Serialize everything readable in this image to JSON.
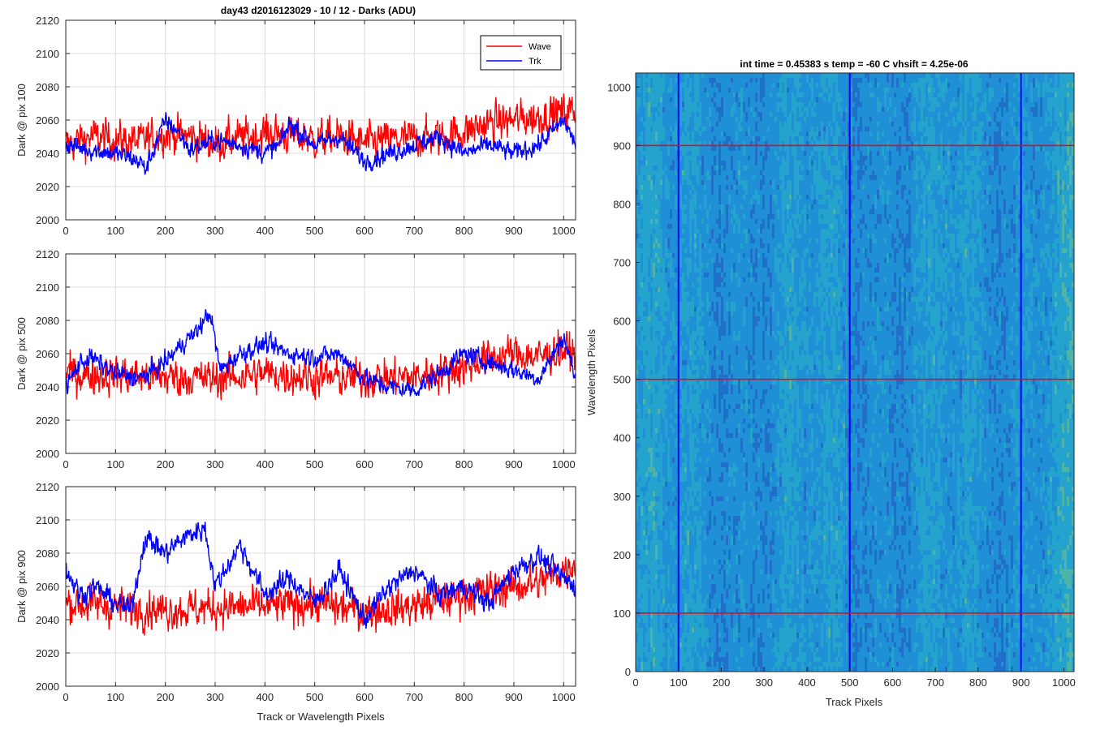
{
  "figure": {
    "title": "day43 d2016123029 - 10 / 12 - Darks (ADU)",
    "left_xlabel": "Track or Wavelength Pixels",
    "colors": {
      "wave": "#ff0000",
      "trk": "#0000ff",
      "grid": "#dcdcdc",
      "axis": "#262626"
    }
  },
  "chart_data": [
    {
      "type": "line",
      "title": "day43 d2016123029 - 10 / 12 - Darks (ADU)",
      "xlabel": "",
      "ylabel": "Dark @ pix 100",
      "xlim": [
        0,
        1024
      ],
      "ylim": [
        2000,
        2120
      ],
      "xticks": [
        0,
        100,
        200,
        300,
        400,
        500,
        600,
        700,
        800,
        900,
        1000
      ],
      "yticks": [
        2000,
        2020,
        2040,
        2060,
        2080,
        2100,
        2120
      ],
      "grid": true,
      "legend": "top-right",
      "series": [
        {
          "name": "Wave",
          "color": "#ff0000",
          "x": [
            0,
            50,
            100,
            150,
            200,
            250,
            300,
            350,
            400,
            450,
            500,
            550,
            600,
            650,
            700,
            750,
            800,
            850,
            900,
            950,
            1000,
            1024
          ],
          "y": [
            2045,
            2050,
            2048,
            2047,
            2052,
            2050,
            2046,
            2049,
            2052,
            2051,
            2048,
            2050,
            2046,
            2048,
            2049,
            2050,
            2053,
            2058,
            2060,
            2062,
            2065,
            2066
          ],
          "noise": 14
        },
        {
          "name": "Trk",
          "color": "#0000ff",
          "x": [
            0,
            50,
            100,
            150,
            160,
            200,
            220,
            250,
            300,
            350,
            400,
            430,
            450,
            500,
            550,
            600,
            650,
            700,
            750,
            800,
            850,
            900,
            950,
            1000,
            1024
          ],
          "y": [
            2045,
            2042,
            2040,
            2035,
            2030,
            2060,
            2055,
            2042,
            2048,
            2045,
            2040,
            2045,
            2058,
            2045,
            2050,
            2035,
            2040,
            2045,
            2050,
            2040,
            2045,
            2040,
            2045,
            2060,
            2045
          ],
          "noise": 7
        }
      ]
    },
    {
      "type": "line",
      "title": "",
      "xlabel": "",
      "ylabel": "Dark @ pix 500",
      "xlim": [
        0,
        1024
      ],
      "ylim": [
        2000,
        2120
      ],
      "xticks": [
        0,
        100,
        200,
        300,
        400,
        500,
        600,
        700,
        800,
        900,
        1000
      ],
      "yticks": [
        2000,
        2020,
        2040,
        2060,
        2080,
        2100,
        2120
      ],
      "grid": true,
      "series": [
        {
          "name": "Wave",
          "color": "#ff0000",
          "x": [
            0,
            100,
            200,
            300,
            400,
            500,
            600,
            700,
            800,
            850,
            900,
            950,
            1000,
            1024
          ],
          "y": [
            2048,
            2047,
            2046,
            2045,
            2048,
            2046,
            2045,
            2046,
            2052,
            2058,
            2060,
            2058,
            2062,
            2060
          ],
          "noise": 14
        },
        {
          "name": "Trk",
          "color": "#0000ff",
          "x": [
            0,
            30,
            50,
            100,
            150,
            200,
            240,
            260,
            290,
            310,
            350,
            400,
            450,
            500,
            550,
            600,
            650,
            700,
            750,
            800,
            850,
            900,
            950,
            1000,
            1024
          ],
          "y": [
            2040,
            2055,
            2058,
            2048,
            2045,
            2055,
            2068,
            2072,
            2085,
            2050,
            2060,
            2066,
            2060,
            2058,
            2060,
            2045,
            2040,
            2038,
            2048,
            2060,
            2055,
            2050,
            2045,
            2070,
            2045
          ],
          "noise": 7
        }
      ]
    },
    {
      "type": "line",
      "title": "",
      "xlabel": "Track or Wavelength Pixels",
      "ylabel": "Dark @ pix 900",
      "xlim": [
        0,
        1024
      ],
      "ylim": [
        2000,
        2120
      ],
      "xticks": [
        0,
        100,
        200,
        300,
        400,
        500,
        600,
        700,
        800,
        900,
        1000
      ],
      "yticks": [
        2000,
        2020,
        2040,
        2060,
        2080,
        2100,
        2120
      ],
      "grid": true,
      "series": [
        {
          "name": "Wave",
          "color": "#ff0000",
          "x": [
            0,
            100,
            200,
            300,
            400,
            500,
            600,
            700,
            800,
            900,
            950,
            1000,
            1024
          ],
          "y": [
            2050,
            2048,
            2046,
            2047,
            2048,
            2050,
            2045,
            2048,
            2055,
            2060,
            2062,
            2070,
            2075
          ],
          "noise": 14
        },
        {
          "name": "Trk",
          "color": "#0000ff",
          "x": [
            0,
            30,
            60,
            100,
            130,
            160,
            200,
            240,
            280,
            300,
            350,
            400,
            450,
            500,
            550,
            600,
            650,
            700,
            750,
            800,
            850,
            900,
            950,
            1000,
            1024
          ],
          "y": [
            2070,
            2055,
            2060,
            2050,
            2045,
            2090,
            2080,
            2090,
            2095,
            2060,
            2085,
            2055,
            2065,
            2050,
            2070,
            2040,
            2060,
            2070,
            2055,
            2060,
            2050,
            2070,
            2078,
            2065,
            2060
          ],
          "noise": 8
        }
      ]
    },
    {
      "type": "heatmap",
      "title": "int time = 0.45383 s    temp = -60 C    vhsift = 4.25e-06",
      "xlabel": "Track Pixels",
      "ylabel": "Wavelength Pixels",
      "xlim": [
        0,
        1024
      ],
      "ylim": [
        0,
        1024
      ],
      "xticks": [
        0,
        100,
        200,
        300,
        400,
        500,
        600,
        700,
        800,
        900,
        1000
      ],
      "yticks": [
        0,
        100,
        200,
        300,
        400,
        500,
        600,
        700,
        800,
        900,
        1000
      ],
      "colormap": [
        "#2166c4",
        "#1f8fd6",
        "#27a9c9",
        "#5fbf9a",
        "#b8c45a"
      ],
      "vertical_lines": [
        100,
        500,
        900
      ],
      "vertical_line_color": "#0000ff",
      "horizontal_lines": [
        100,
        500,
        900
      ],
      "horizontal_line_color": "#ff0000"
    }
  ]
}
